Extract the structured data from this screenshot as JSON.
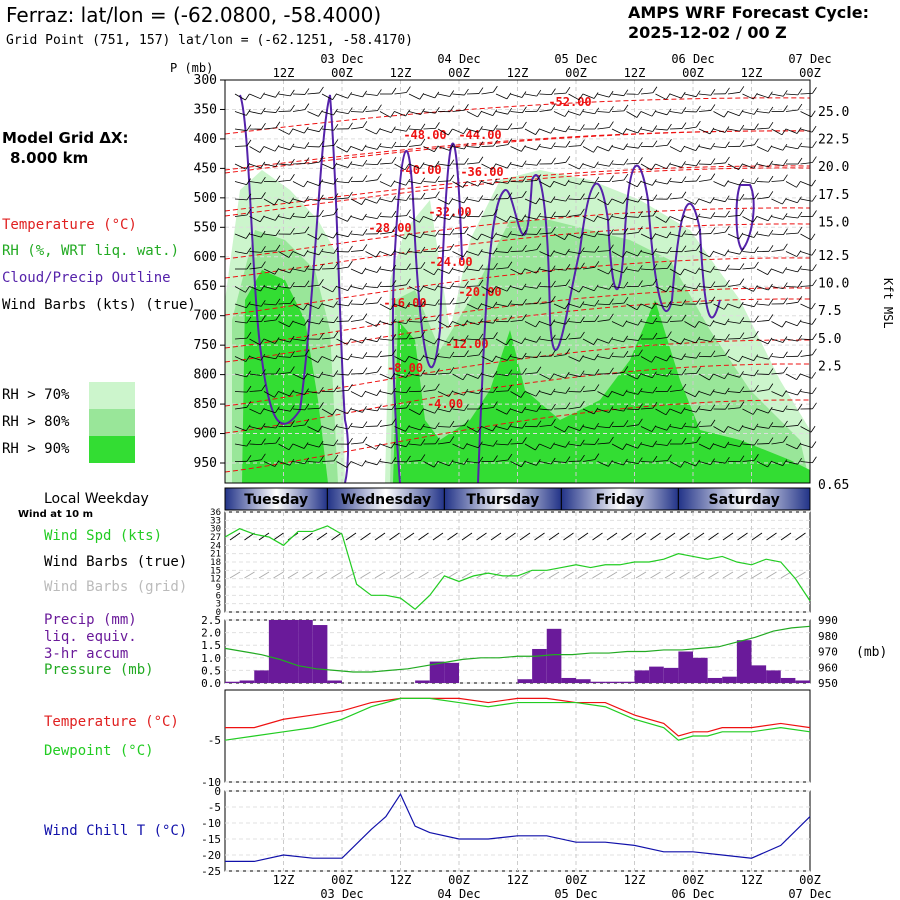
{
  "header": {
    "title": "Ferraz:  lat/lon = (-62.0800, -58.4000)",
    "subtitle": "Grid Point (751, 157) lat/lon = (-62.1251, -58.4170)",
    "cycle_line1": "AMPS WRF Forecast Cycle:",
    "cycle_line2": "2025-12-02 / 00  Z"
  },
  "left_panel": {
    "grid_label": "Model Grid ΔX:",
    "grid_value": "8.000 km",
    "temperature_legend": "Temperature (°C)",
    "rh_legend": "RH (%, WRT liq. wat.)",
    "cloud_legend": "Cloud/Precip Outline",
    "wind_legend": "Wind Barbs (kts) (true)",
    "rh_keys": [
      "RH > 70%",
      "RH > 80%",
      "RH > 90%"
    ],
    "local_weekday": "Local Weekday",
    "wind_at": "Wind at 10 m",
    "wind_spd": "Wind Spd (kts)",
    "wind_barbs_true": "Wind Barbs (true)",
    "wind_barbs_grid": "Wind Barbs (grid)",
    "precip_l1": "Precip (mm)",
    "precip_l2": "liq. equiv.",
    "precip_l3": "3-hr accum",
    "pressure": "Pressure (mb)",
    "temperature": "Temperature (°C)",
    "dewpoint": "Dewpoint (°C)",
    "wind_chill": "Wind Chill T (°C)"
  },
  "colors": {
    "rh70": "#ccf5cc",
    "rh80": "#99e699",
    "rh90": "#33dd33",
    "temperature": "#ee1111",
    "cloud": "#5522aa",
    "wind_spd": "#22cc22",
    "precip": "#6a1a9a",
    "pressure": "#22aa22",
    "temp_ts": "#ee1111",
    "dewpoint": "#22cc22",
    "wind_chill": "#1111aa"
  },
  "chart_data": [
    {
      "type": "heatmap",
      "name": "cross-section",
      "p_label": "P (mb)",
      "y_axis_right_label": "Kft MSL",
      "time_ticks": [
        "12Z",
        "00Z",
        "12Z",
        "00Z",
        "12Z",
        "00Z",
        "12Z",
        "00Z",
        "12Z",
        "00Z"
      ],
      "date_labels": [
        "03 Dec",
        "04 Dec",
        "05 Dec",
        "06 Dec",
        "07 Dec"
      ],
      "pressure_ticks": [
        300,
        350,
        400,
        450,
        500,
        550,
        600,
        650,
        700,
        750,
        800,
        850,
        900,
        950
      ],
      "kft_ticks": [
        "25.0",
        "22.5",
        "20.0",
        "17.5",
        "15.0",
        "12.5",
        "10.0",
        "7.5",
        "5.0",
        "2.5",
        "0.65"
      ],
      "temperature_labels": [
        "-52.00",
        "-48.00",
        "-44.00",
        "-40.00",
        "-36.00",
        "-32.00",
        "-28.00",
        "-24.00",
        "-20.00",
        "-16.00",
        "-12.00",
        "-8.00",
        "-4.00"
      ]
    },
    {
      "type": "table",
      "name": "local-weekday",
      "days": [
        "Tuesday",
        "Wednesday",
        "Thursday",
        "Friday",
        "Saturday"
      ]
    },
    {
      "type": "line",
      "name": "wind-speed",
      "yticks": [
        0,
        3,
        6,
        9,
        12,
        15,
        18,
        21,
        24,
        27,
        30,
        33,
        36
      ],
      "ylim": [
        0,
        36
      ],
      "x_hours": [
        0,
        3,
        6,
        9,
        12,
        15,
        18,
        21,
        24,
        27,
        30,
        33,
        36,
        39,
        42,
        45,
        48,
        51,
        54,
        57,
        60,
        63,
        66,
        69,
        72,
        75,
        78,
        81,
        84,
        87,
        90,
        93,
        96,
        99,
        102,
        105,
        108,
        111,
        114,
        117,
        120
      ],
      "values": [
        27,
        30,
        28,
        27,
        24,
        29,
        29,
        31,
        28,
        10,
        6,
        6,
        5,
        1,
        6,
        13,
        11,
        13,
        14,
        13,
        13,
        15,
        15,
        16,
        17,
        16,
        17,
        17,
        18,
        18,
        19,
        21,
        20,
        19,
        20,
        18,
        17,
        19,
        18,
        12,
        4
      ]
    },
    {
      "type": "bar",
      "name": "precip-pressure",
      "precip_yticks": [
        "0.0",
        "0.5",
        "1.0",
        "1.5",
        "2.0",
        "2.5"
      ],
      "precip_ylim": [
        0,
        2.5
      ],
      "precip_values": [
        0.05,
        0.1,
        0.5,
        2.5,
        2.5,
        2.5,
        2.3,
        0.1,
        0,
        0,
        0,
        0,
        0,
        0.1,
        0.85,
        0.8,
        0,
        0,
        0,
        0,
        0.15,
        1.35,
        2.15,
        0.2,
        0.15,
        0.05,
        0.05,
        0.05,
        0.5,
        0.65,
        0.6,
        1.25,
        1.0,
        0.2,
        0.25,
        1.7,
        0.7,
        0.5,
        0.2,
        0.1
      ],
      "pressure_yticks": [
        950,
        960,
        970,
        980,
        990
      ],
      "pressure_ylim": [
        950,
        990
      ],
      "pressure_unit": "(mb)",
      "pressure_values": [
        972,
        970,
        968,
        965,
        961,
        959,
        958,
        957,
        957,
        958,
        959,
        961,
        963,
        965,
        966,
        966,
        967,
        967,
        968,
        968,
        969,
        969,
        970,
        970,
        971,
        971,
        972,
        973,
        976,
        979,
        983,
        985,
        986
      ]
    },
    {
      "type": "line",
      "name": "temperature-dewpoint",
      "yticks": [
        "-5",
        "-10"
      ],
      "ylim": [
        -10,
        1
      ],
      "x_hours": [
        0,
        6,
        12,
        18,
        24,
        30,
        36,
        42,
        48,
        54,
        60,
        66,
        72,
        78,
        84,
        90,
        93,
        96,
        99,
        102,
        108,
        114,
        120
      ],
      "temperature": [
        -3.5,
        -3.5,
        -2.5,
        -2,
        -1.5,
        -0.5,
        0,
        0,
        0,
        -0.5,
        0,
        0,
        -0.5,
        -0.5,
        -2,
        -3,
        -4.5,
        -4,
        -4,
        -3.5,
        -3.5,
        -3,
        -3.5
      ],
      "dewpoint": [
        -5,
        -4.5,
        -4,
        -3.5,
        -2.5,
        -1,
        0,
        0,
        -0.5,
        -1,
        -0.5,
        -0.5,
        -0.5,
        -1,
        -2.5,
        -3.5,
        -5,
        -4.5,
        -4.5,
        -4,
        -4,
        -3.5,
        -4
      ]
    },
    {
      "type": "line",
      "name": "wind-chill",
      "yticks": [
        0,
        -5,
        -10,
        -15,
        -20,
        -25
      ],
      "ylim": [
        -25,
        0
      ],
      "x_hours": [
        0,
        6,
        12,
        18,
        24,
        30,
        33,
        36,
        39,
        42,
        48,
        54,
        60,
        66,
        72,
        78,
        84,
        90,
        96,
        102,
        108,
        114,
        120
      ],
      "values": [
        -22,
        -22,
        -20,
        -21,
        -21,
        -12,
        -8,
        -1,
        -11,
        -13,
        -15,
        -15,
        -14,
        -14,
        -16,
        -16,
        -17,
        -19,
        -19,
        -20,
        -21,
        -17,
        -8
      ]
    }
  ]
}
